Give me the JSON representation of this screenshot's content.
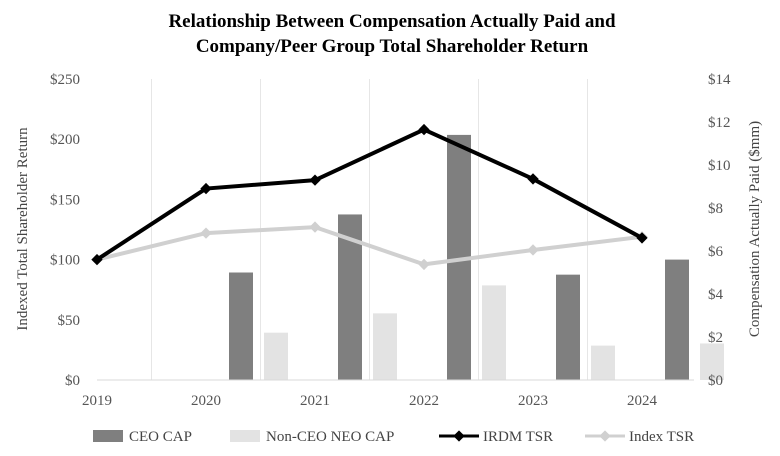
{
  "chart_data": {
    "type": "bar",
    "title_lines": [
      "Relationship Between Compensation Actually Paid and",
      "Company/Peer Group Total Shareholder Return"
    ],
    "categories": [
      "2019",
      "2020",
      "2021",
      "2022",
      "2023",
      "2024"
    ],
    "left_axis": {
      "label": "Indexed Total Shareholder Return",
      "range": [
        0,
        250
      ],
      "ticks": [
        "$0",
        "$50",
        "$100",
        "$150",
        "$200",
        "$250"
      ],
      "tick_values": [
        0,
        50,
        100,
        150,
        200,
        250
      ]
    },
    "right_axis": {
      "label": "Compensation Actually Paid ($mm)",
      "range": [
        0,
        14
      ],
      "ticks": [
        "$0",
        "$2",
        "$4",
        "$6",
        "$8",
        "$10",
        "$12",
        "$14"
      ],
      "tick_values": [
        0,
        2,
        4,
        6,
        8,
        10,
        12,
        14
      ]
    },
    "bar_series": [
      {
        "name": "CEO CAP",
        "axis": "right",
        "color": "#7f7f7f",
        "values": [
          null,
          5.0,
          7.7,
          11.4,
          4.9,
          5.6
        ]
      },
      {
        "name": "Non-CEO NEO CAP",
        "axis": "right",
        "color": "#e3e3e3",
        "values": [
          null,
          2.2,
          3.1,
          4.4,
          1.6,
          1.7
        ]
      }
    ],
    "line_series": [
      {
        "name": "IRDM TSR",
        "axis": "left",
        "color": "#000000",
        "values": [
          100,
          159,
          166,
          208,
          167,
          118
        ]
      },
      {
        "name": "Index TSR",
        "axis": "left",
        "color": "#d0d0d0",
        "values": [
          100,
          122,
          127,
          96,
          108,
          119
        ]
      }
    ],
    "grid": "vertical",
    "legend_position": "bottom"
  }
}
